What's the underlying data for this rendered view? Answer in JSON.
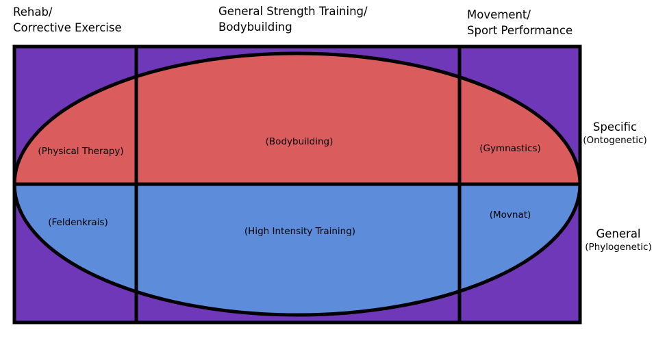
{
  "columns": [
    {
      "line1": "Rehab/",
      "line2": "Corrective Exercise"
    },
    {
      "line1": "General Strength Training/",
      "line2": "Bodybuilding"
    },
    {
      "line1": "Movement/",
      "line2": "Sport Performance"
    }
  ],
  "rows": [
    {
      "label": "Specific",
      "sublabel": "(Ontogenetic)"
    },
    {
      "label": "General",
      "sublabel": "(Phylogenetic)"
    }
  ],
  "cells": {
    "specific": [
      "(Physical Therapy)",
      "(Bodybuilding)",
      "(Gymnastics)"
    ],
    "general": [
      "(Feldenkrais)",
      "(High Intensity Training)",
      "(Movnat)"
    ]
  },
  "colors": {
    "background_box": "#6f38b9",
    "specific_half": "#da5c5c",
    "general_half": "#5c8cda",
    "lines": "#000000"
  }
}
